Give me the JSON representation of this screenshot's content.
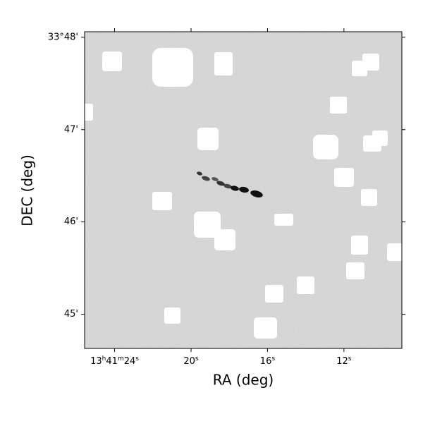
{
  "chart_data": {
    "type": "image",
    "xlabel": "RA (deg)",
    "ylabel": "DEC (deg)",
    "xlim": [
      25.57,
      8.97
    ],
    "xticks": [
      {
        "value": 24,
        "label": "13h41m24s"
      },
      {
        "value": 20,
        "label": "20s"
      },
      {
        "value": 16,
        "label": "16s"
      },
      {
        "value": 12,
        "label": "12s"
      }
    ],
    "ylim": [
      44.63,
      48.06
    ],
    "yticks": [
      {
        "value": 48,
        "label": "33°48'"
      },
      {
        "value": 47,
        "label": "47'"
      },
      {
        "value": 46,
        "label": "46'"
      },
      {
        "value": 45,
        "label": "45'"
      }
    ],
    "colormap": "gray_r"
  }
}
